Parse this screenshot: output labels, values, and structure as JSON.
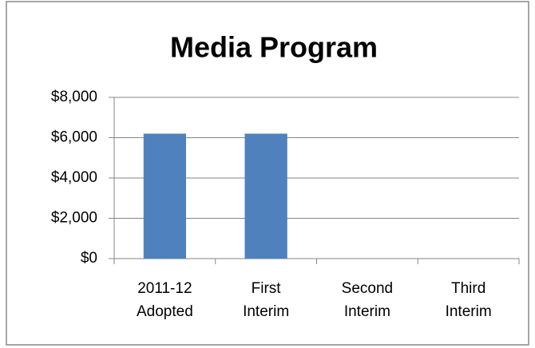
{
  "chart_data": {
    "type": "bar",
    "title": "Media Program",
    "categories": [
      [
        "2011-12",
        "Adopted"
      ],
      [
        "First",
        "Interim"
      ],
      [
        "Second",
        "Interim"
      ],
      [
        "Third",
        "Interim"
      ]
    ],
    "values": [
      6200,
      6200,
      null,
      null
    ],
    "color": "#4f81bd",
    "ylim": [
      0,
      8000
    ],
    "yticks": [
      {
        "value": 0,
        "label": "$0"
      },
      {
        "value": 2000,
        "label": "$2,000"
      },
      {
        "value": 4000,
        "label": "$4,000"
      },
      {
        "value": 6000,
        "label": "$6,000"
      },
      {
        "value": 8000,
        "label": "$8,000"
      }
    ],
    "grid": true
  }
}
